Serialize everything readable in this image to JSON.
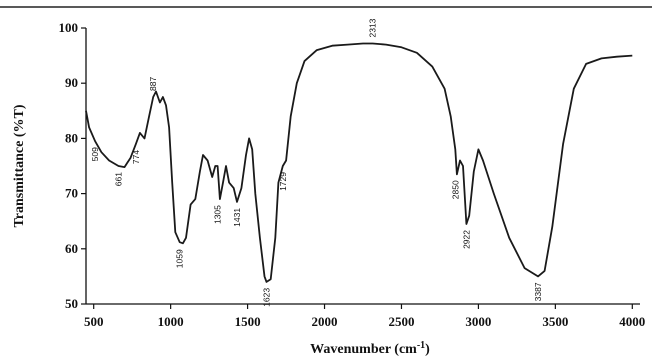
{
  "chart_data": {
    "type": "line",
    "title": "",
    "xlabel": "Wavenumber (cm",
    "xlabel_sup": "-1",
    "xlabel_close": ")",
    "ylabel": "Transmittance (%T)",
    "xlim": [
      450,
      4050
    ],
    "ylim": [
      50,
      100
    ],
    "x_ticks": [
      500,
      1000,
      1500,
      2000,
      2500,
      3000,
      3500,
      4000
    ],
    "y_ticks": [
      50,
      60,
      70,
      80,
      90,
      100
    ],
    "grid": false,
    "legend": "none",
    "line_color": "#1a1a1a",
    "series": [
      {
        "points": [
          [
            450,
            85
          ],
          [
            470,
            82
          ],
          [
            509,
            79.5
          ],
          [
            550,
            77.5
          ],
          [
            600,
            76
          ],
          [
            661,
            75
          ],
          [
            700,
            74.8
          ],
          [
            740,
            76.5
          ],
          [
            774,
            79
          ],
          [
            800,
            81
          ],
          [
            830,
            80
          ],
          [
            860,
            84
          ],
          [
            887,
            87.5
          ],
          [
            905,
            88.5
          ],
          [
            930,
            86.5
          ],
          [
            950,
            87.5
          ],
          [
            970,
            86
          ],
          [
            990,
            82
          ],
          [
            1010,
            72
          ],
          [
            1030,
            63
          ],
          [
            1059,
            61.2
          ],
          [
            1080,
            61
          ],
          [
            1100,
            62
          ],
          [
            1130,
            68
          ],
          [
            1160,
            69
          ],
          [
            1190,
            74
          ],
          [
            1210,
            77
          ],
          [
            1240,
            76
          ],
          [
            1270,
            73
          ],
          [
            1290,
            75
          ],
          [
            1305,
            75
          ],
          [
            1320,
            69
          ],
          [
            1340,
            72
          ],
          [
            1360,
            75
          ],
          [
            1380,
            72
          ],
          [
            1410,
            71
          ],
          [
            1431,
            68.5
          ],
          [
            1460,
            71
          ],
          [
            1490,
            77
          ],
          [
            1510,
            80
          ],
          [
            1530,
            78
          ],
          [
            1550,
            70
          ],
          [
            1580,
            62
          ],
          [
            1610,
            55
          ],
          [
            1623,
            54
          ],
          [
            1650,
            54.5
          ],
          [
            1680,
            62
          ],
          [
            1700,
            72
          ],
          [
            1729,
            75
          ],
          [
            1750,
            76
          ],
          [
            1780,
            84
          ],
          [
            1820,
            90
          ],
          [
            1870,
            94
          ],
          [
            1950,
            96
          ],
          [
            2050,
            96.8
          ],
          [
            2150,
            97
          ],
          [
            2250,
            97.2
          ],
          [
            2313,
            97.2
          ],
          [
            2400,
            97
          ],
          [
            2500,
            96.5
          ],
          [
            2600,
            95.5
          ],
          [
            2700,
            93
          ],
          [
            2780,
            89
          ],
          [
            2820,
            84
          ],
          [
            2850,
            78
          ],
          [
            2860,
            73.5
          ],
          [
            2880,
            76
          ],
          [
            2900,
            75
          ],
          [
            2922,
            64.5
          ],
          [
            2940,
            66
          ],
          [
            2970,
            74
          ],
          [
            3000,
            78
          ],
          [
            3030,
            76
          ],
          [
            3100,
            70
          ],
          [
            3200,
            62
          ],
          [
            3300,
            56.5
          ],
          [
            3387,
            55
          ],
          [
            3430,
            56
          ],
          [
            3480,
            64
          ],
          [
            3550,
            79
          ],
          [
            3620,
            89
          ],
          [
            3700,
            93.5
          ],
          [
            3800,
            94.5
          ],
          [
            3900,
            94.8
          ],
          [
            4000,
            95
          ]
        ]
      }
    ],
    "annotations": [
      {
        "text": "509",
        "x": 509,
        "y": 79.5
      },
      {
        "text": "661",
        "x": 661,
        "y": 75
      },
      {
        "text": "774",
        "x": 774,
        "y": 79
      },
      {
        "text": "887",
        "x": 887,
        "y": 87.5
      },
      {
        "text": "1059",
        "x": 1059,
        "y": 61
      },
      {
        "text": "1305",
        "x": 1305,
        "y": 69
      },
      {
        "text": "1431",
        "x": 1431,
        "y": 68.5
      },
      {
        "text": "1623",
        "x": 1623,
        "y": 54
      },
      {
        "text": "1729",
        "x": 1729,
        "y": 75
      },
      {
        "text": "2313",
        "x": 2313,
        "y": 97.2
      },
      {
        "text": "2850",
        "x": 2850,
        "y": 73.5
      },
      {
        "text": "2922",
        "x": 2922,
        "y": 64.5
      },
      {
        "text": "3387",
        "x": 3387,
        "y": 55
      }
    ]
  }
}
